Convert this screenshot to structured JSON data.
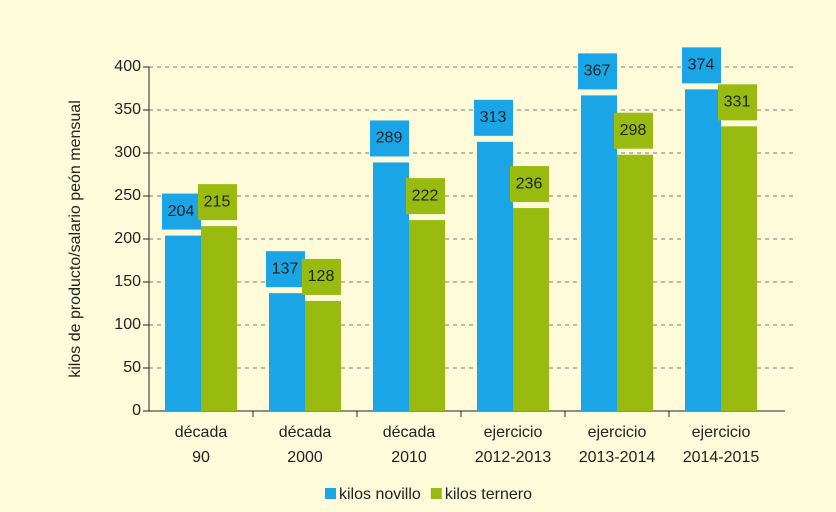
{
  "chart_data": {
    "type": "bar",
    "y_label": "kilos de producto/salario peón mensual",
    "categories": [
      [
        "década",
        "90"
      ],
      [
        "década",
        "2000"
      ],
      [
        "década",
        "2010"
      ],
      [
        "ejercicio",
        "2012-2013"
      ],
      [
        "ejercicio",
        "2013-2014"
      ],
      [
        "ejercicio",
        "2014-2015"
      ]
    ],
    "series": [
      {
        "name": "kilos novillo",
        "color": "#1aa6e6",
        "values": [
          204,
          137,
          289,
          313,
          367,
          374
        ]
      },
      {
        "name": "kilos ternero",
        "color": "#99bb10",
        "values": [
          215,
          128,
          222,
          236,
          298,
          331
        ]
      }
    ],
    "ylim": [
      0,
      400
    ],
    "yticks": [
      0,
      50,
      100,
      150,
      200,
      250,
      300,
      350,
      400
    ],
    "grid": true
  }
}
